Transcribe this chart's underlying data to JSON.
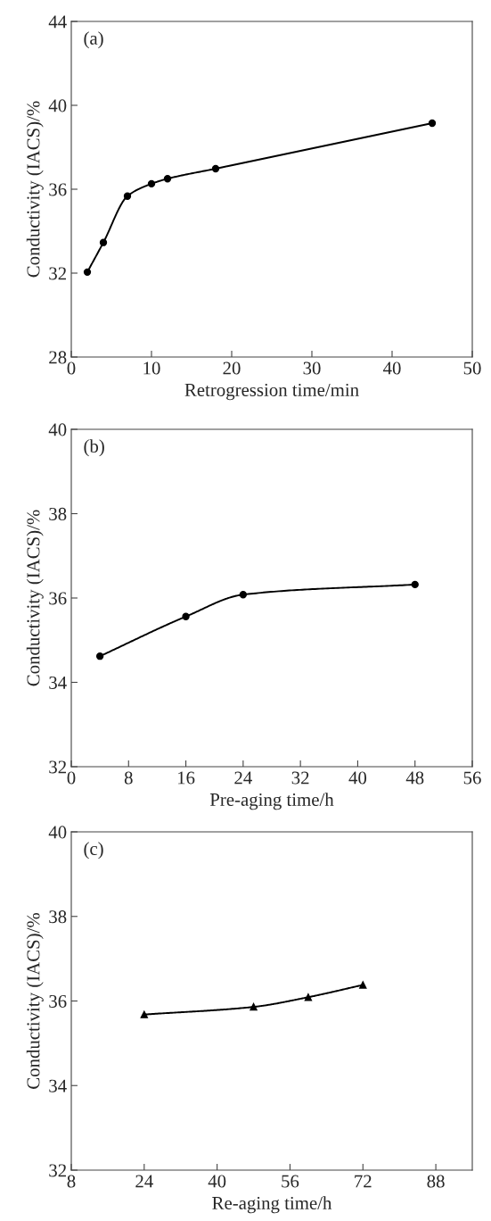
{
  "chart_data": [
    {
      "type": "line",
      "annotations": [
        "(a)"
      ],
      "xlabel": "Retrogression time/min",
      "ylabel": "Conductivity (IACS)/%",
      "xlim": [
        0,
        50
      ],
      "xticks": [
        0,
        10,
        20,
        30,
        40,
        50
      ],
      "ylim": [
        28,
        44
      ],
      "yticks": [
        28,
        32,
        36,
        40,
        44
      ],
      "marker": "circle",
      "line_style": "solid",
      "grid": false,
      "legend": false,
      "series": [
        {
          "color": "#000000",
          "x": [
            2,
            4,
            7,
            10,
            12,
            18,
            45
          ],
          "values": [
            32.05,
            33.46,
            35.67,
            36.26,
            36.5,
            36.98,
            39.15
          ]
        }
      ]
    },
    {
      "type": "line",
      "annotations": [
        "(b)"
      ],
      "xlabel": "Pre-aging time/h",
      "ylabel": "Conductivity (IACS)/%",
      "xlim": [
        0,
        56
      ],
      "xticks": [
        0,
        8,
        16,
        24,
        32,
        40,
        48,
        56
      ],
      "ylim": [
        32,
        40
      ],
      "yticks": [
        32,
        34,
        36,
        38,
        40
      ],
      "marker": "circle",
      "line_style": "solid",
      "grid": false,
      "legend": false,
      "series": [
        {
          "color": "#000000",
          "x": [
            4,
            16,
            24,
            48
          ],
          "values": [
            34.62,
            35.56,
            36.08,
            36.32
          ]
        }
      ]
    },
    {
      "type": "line",
      "annotations": [
        "(c)"
      ],
      "xlabel": "Re-aging time/h",
      "ylabel": "Conductivity (IACS)/%",
      "xlim": [
        8,
        96
      ],
      "xticks": [
        8,
        24,
        40,
        56,
        72,
        88
      ],
      "ylim": [
        32,
        40
      ],
      "yticks": [
        32,
        34,
        36,
        38,
        40
      ],
      "marker": "triangle",
      "line_style": "solid",
      "grid": false,
      "legend": false,
      "series": [
        {
          "color": "#000000",
          "x": [
            24,
            48,
            60,
            72
          ],
          "values": [
            35.68,
            35.86,
            36.09,
            36.38
          ]
        }
      ]
    }
  ]
}
